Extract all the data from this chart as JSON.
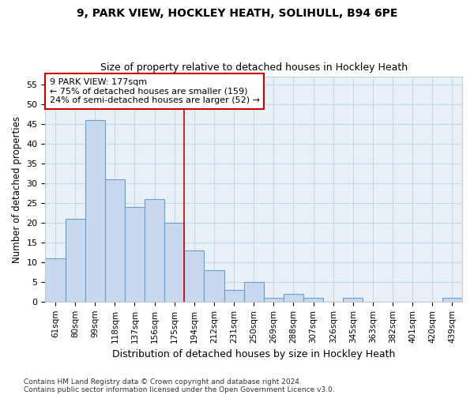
{
  "title1": "9, PARK VIEW, HOCKLEY HEATH, SOLIHULL, B94 6PE",
  "title2": "Size of property relative to detached houses in Hockley Heath",
  "xlabel": "Distribution of detached houses by size in Hockley Heath",
  "ylabel": "Number of detached properties",
  "categories": [
    "61sqm",
    "80sqm",
    "99sqm",
    "118sqm",
    "137sqm",
    "156sqm",
    "175sqm",
    "194sqm",
    "212sqm",
    "231sqm",
    "250sqm",
    "269sqm",
    "288sqm",
    "307sqm",
    "326sqm",
    "345sqm",
    "363sqm",
    "382sqm",
    "401sqm",
    "420sqm",
    "439sqm"
  ],
  "values": [
    11,
    21,
    46,
    31,
    24,
    26,
    20,
    13,
    8,
    3,
    5,
    1,
    2,
    1,
    0,
    1,
    0,
    0,
    0,
    0,
    1
  ],
  "bar_color": "#c8d8ee",
  "bar_edge_color": "#6a9fd0",
  "grid_color": "#c8d8e8",
  "background_color": "#ffffff",
  "plot_bg_color": "#e8f0f8",
  "vline_x": 6.5,
  "vline_color": "#cc0000",
  "annotation_text": "9 PARK VIEW: 177sqm\n← 75% of detached houses are smaller (159)\n24% of semi-detached houses are larger (52) →",
  "annotation_box_color": "#ffffff",
  "annotation_box_edge": "#cc0000",
  "footer1": "Contains HM Land Registry data © Crown copyright and database right 2024.",
  "footer2": "Contains public sector information licensed under the Open Government Licence v3.0.",
  "ylim": [
    0,
    57
  ],
  "yticks": [
    0,
    5,
    10,
    15,
    20,
    25,
    30,
    35,
    40,
    45,
    50,
    55
  ]
}
